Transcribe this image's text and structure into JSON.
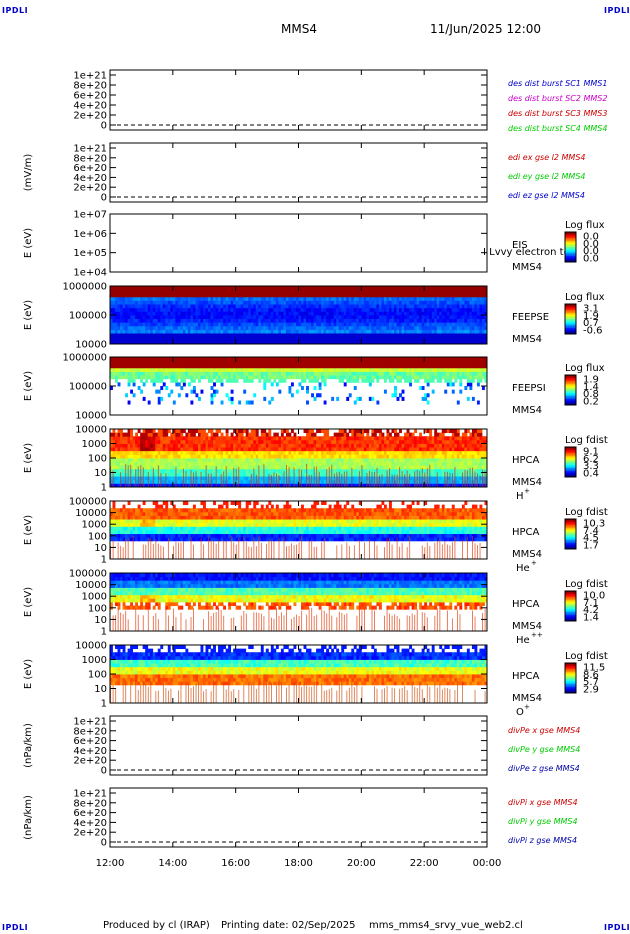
{
  "header": {
    "corner_label": "IPDLI",
    "spacecraft": "MMS4",
    "date_time": "11/Jun/2025 12:00"
  },
  "footer": {
    "produced_by": "Produced by cl (IRAP)",
    "printing_date": "Printing date: 02/Sep/2025",
    "filename": "mms_mms4_srvy_vue_web2.cl"
  },
  "colors": {
    "blue": "#0000cc",
    "magenta": "#cc00cc",
    "red": "#cc0000",
    "green": "#00cc00",
    "dark_blue": "#0000aa"
  },
  "chart_data": {
    "type": "heatmap",
    "x_tick_labels": [
      "12:00",
      "14:00",
      "16:00",
      "18:00",
      "20:00",
      "22:00",
      "00:00"
    ],
    "x_range_hours": [
      12,
      24
    ],
    "panels": [
      {
        "kind": "line",
        "ylabel": "",
        "yticks": [
          "1e+21",
          "8e+20",
          "6e+20",
          "4e+20",
          "2e+20",
          "0"
        ],
        "legend": [
          {
            "text": "des dist burst SC1 MMS1",
            "color": "#0000cc"
          },
          {
            "text": "des dist burst SC2 MMS2",
            "color": "#cc00cc"
          },
          {
            "text": "des dist burst SC3 MMS3",
            "color": "#cc0000"
          },
          {
            "text": "des dist burst SC4 MMS4",
            "color": "#00cc00"
          }
        ]
      },
      {
        "kind": "line",
        "ylabel": "(mV/m)",
        "yticks": [
          "1e+21",
          "8e+20",
          "6e+20",
          "4e+20",
          "2e+20",
          "0"
        ],
        "legend": [
          {
            "text": "edi ex gse l2 MMS4",
            "color": "#cc0000"
          },
          {
            "text": "edi ey gse l2 MMS4",
            "color": "#00cc00"
          },
          {
            "text": "edi ez gse l2 MMS4",
            "color": "#0000cc"
          }
        ]
      },
      {
        "kind": "empty_spec",
        "ylabel": "E (eV)",
        "yticks": [
          "1e+07",
          "1e+06",
          "1e+05",
          "1e+04"
        ],
        "labels": [
          "EIS",
          "MMS4"
        ],
        "overlay": "I Lvvy electron to",
        "cbar_title": "Log flux",
        "cbar_ticks": [
          "0.0",
          "0.0",
          "0.0",
          "0.0"
        ]
      },
      {
        "kind": "spec",
        "style": "feepse",
        "ylabel": "E (eV)",
        "yticks": [
          "1000000",
          "100000",
          "10000"
        ],
        "labels": [
          "FEEPSE",
          "MMS4"
        ],
        "cbar_title": "Log flux",
        "cbar_ticks": [
          "3.1",
          "1.9",
          "0.7",
          "-0.6"
        ]
      },
      {
        "kind": "spec",
        "style": "feepsi",
        "ylabel": "E (eV)",
        "yticks": [
          "1000000",
          "100000",
          "10000"
        ],
        "labels": [
          "FEEPSI",
          "MMS4"
        ],
        "cbar_title": "Log flux",
        "cbar_ticks": [
          "1.9",
          "1.4",
          "0.8",
          "0.2"
        ]
      },
      {
        "kind": "spec",
        "style": "hpca_h",
        "ylabel": "E (eV)",
        "yticks": [
          "10000",
          "1000",
          "100",
          "10",
          "1"
        ],
        "labels": [
          "HPCA",
          "MMS4"
        ],
        "species": "H",
        "charge": "+",
        "cbar_title": "Log fdist",
        "cbar_ticks": [
          "9.1",
          "6.2",
          "3.3",
          "0.4"
        ]
      },
      {
        "kind": "spec",
        "style": "hpca_he",
        "ylabel": "E (eV)",
        "yticks": [
          "100000",
          "10000",
          "1000",
          "100",
          "10",
          "1"
        ],
        "labels": [
          "HPCA",
          "MMS4"
        ],
        "species": "He",
        "charge": "+",
        "cbar_title": "Log fdist",
        "cbar_ticks": [
          "10.3",
          "7.4",
          "4.5",
          "1.7"
        ]
      },
      {
        "kind": "spec",
        "style": "hpca_hepp",
        "ylabel": "E (eV)",
        "yticks": [
          "100000",
          "10000",
          "1000",
          "100",
          "10",
          "1"
        ],
        "labels": [
          "HPCA",
          "MMS4"
        ],
        "species": "He",
        "charge": "++",
        "cbar_title": "Log fdist",
        "cbar_ticks": [
          "10.0",
          "7.1",
          "4.2",
          "1.4"
        ]
      },
      {
        "kind": "spec",
        "style": "hpca_o",
        "ylabel": "E (eV)",
        "yticks": [
          "10000",
          "1000",
          "100",
          "10",
          "1"
        ],
        "labels": [
          "HPCA",
          "MMS4"
        ],
        "species": "O",
        "charge": "+",
        "cbar_title": "Log fdist",
        "cbar_ticks": [
          "11.5",
          "8.6",
          "5.7",
          "2.9"
        ]
      },
      {
        "kind": "line",
        "ylabel": "(nPa/km)",
        "yticks": [
          "1e+21",
          "8e+20",
          "6e+20",
          "4e+20",
          "2e+20",
          "0"
        ],
        "legend": [
          {
            "text": "divPe x gse MMS4",
            "color": "#cc0000"
          },
          {
            "text": "divPe y gse MMS4",
            "color": "#00cc00"
          },
          {
            "text": "divPe z gse MMS4",
            "color": "#0000aa"
          }
        ]
      },
      {
        "kind": "line",
        "ylabel": "(nPa/km)",
        "yticks": [
          "1e+21",
          "8e+20",
          "6e+20",
          "4e+20",
          "2e+20",
          "0"
        ],
        "legend": [
          {
            "text": "divPi x gse MMS4",
            "color": "#cc0000"
          },
          {
            "text": "divPi y gse MMS4",
            "color": "#00cc00"
          },
          {
            "text": "divPi z gse MMS4",
            "color": "#0000aa"
          }
        ]
      }
    ]
  }
}
